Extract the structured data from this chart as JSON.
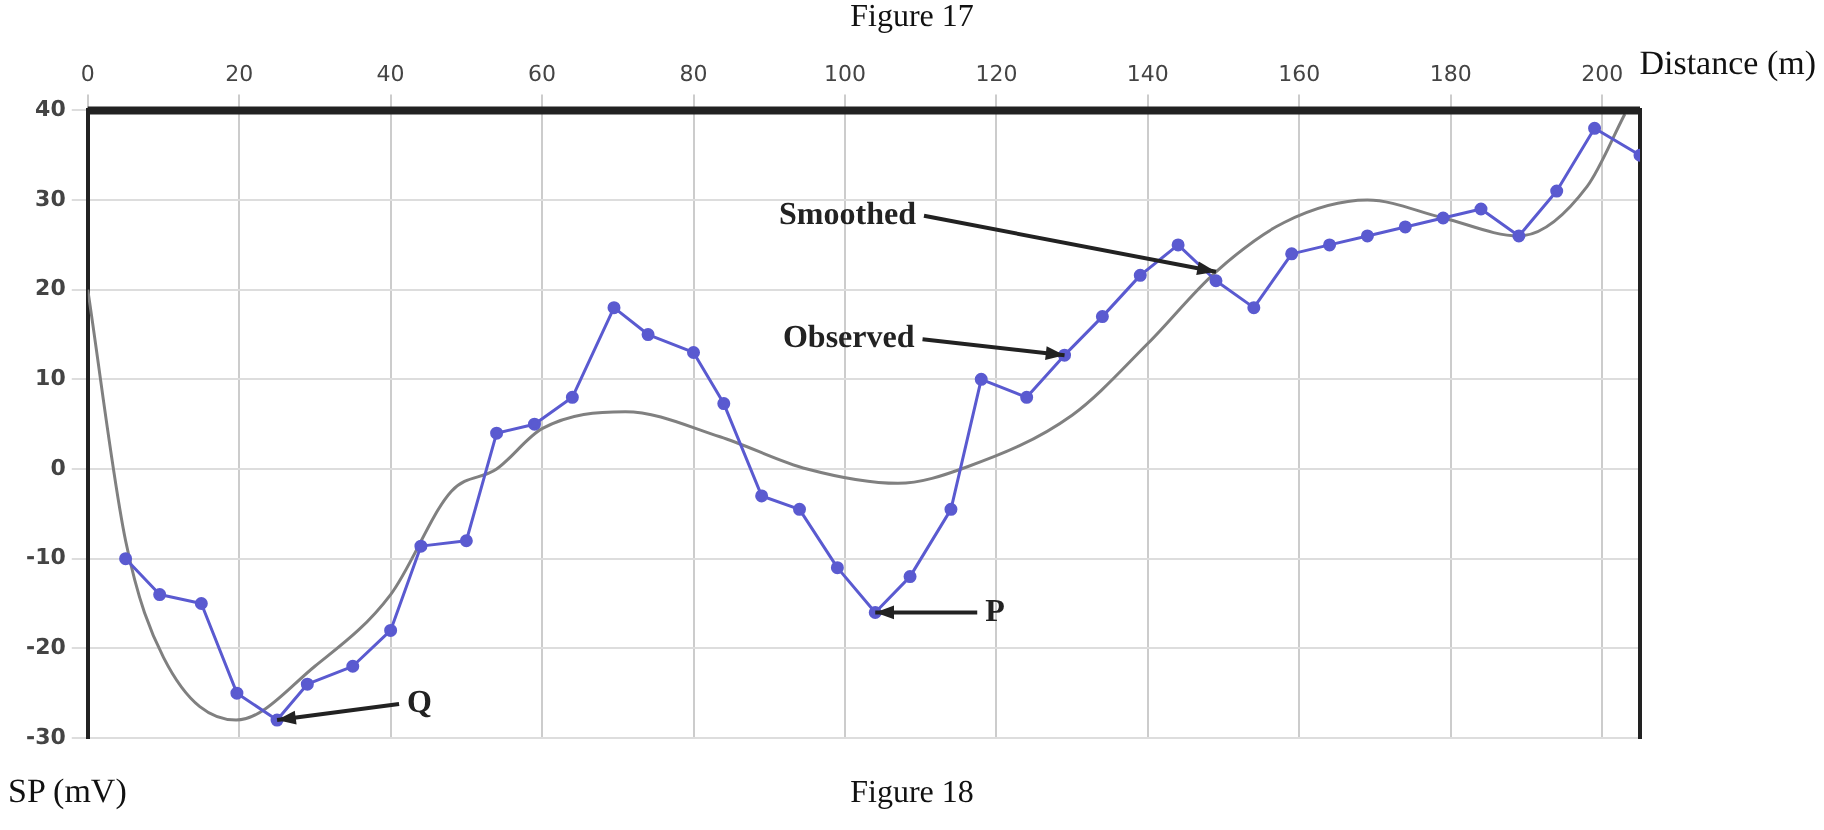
{
  "chart_data": {
    "type": "line",
    "title": "Figure 17",
    "xlabel": "Distance (m)",
    "ylabel": "SP (mV)",
    "xlim": [
      0,
      205
    ],
    "ylim": [
      -30,
      40
    ],
    "xticks": [
      0,
      20,
      40,
      60,
      80,
      100,
      120,
      140,
      160,
      180,
      200
    ],
    "yticks": [
      -30,
      -20,
      -10,
      0,
      10,
      20,
      30,
      40
    ],
    "grid": true,
    "legend": false,
    "line_style": "solid",
    "series": [
      {
        "marker": "circle",
        "color": "#5a5ad0",
        "x": [
          5,
          9.5,
          15,
          19.7,
          25,
          29,
          35,
          40,
          44,
          50,
          54,
          59,
          64,
          69.5,
          74,
          80,
          84,
          89,
          94,
          99,
          104,
          108.6,
          114,
          118,
          124,
          129,
          134,
          139,
          144,
          149,
          154,
          159,
          164,
          169,
          174,
          179,
          184,
          189,
          194,
          199,
          205
        ],
        "values": [
          -10,
          -14,
          -15,
          -25,
          -28,
          -24,
          -22,
          -18,
          -8.6,
          -8,
          4,
          5,
          8,
          18,
          15,
          13,
          7.3,
          -3,
          -4.5,
          -11,
          -16,
          -12,
          -4.5,
          10,
          8,
          12.7,
          17,
          21.6,
          25,
          21,
          18,
          24,
          25,
          26,
          27,
          28,
          29,
          26,
          31,
          38,
          35
        ]
      },
      {
        "marker": "none",
        "color": "#808080",
        "x": [
          0,
          5,
          10,
          19.6,
          30,
          40,
          48,
          54,
          60,
          71,
          83.5,
          95,
          107,
          116,
          130,
          140,
          149,
          158,
          169,
          179,
          189,
          198,
          203
        ],
        "values": [
          20,
          -8,
          -21,
          -28,
          -22,
          -14,
          -2.5,
          0,
          4.5,
          6.4,
          3.6,
          0,
          -1.6,
          0.2,
          6,
          14,
          22,
          27.5,
          30,
          28,
          26,
          31.5,
          39.6
        ]
      }
    ],
    "annotations": [
      {
        "text": "Smoothed",
        "x": 149,
        "y": 22
      },
      {
        "text": "Observed",
        "x": 129,
        "y": 12.7
      },
      {
        "text": "P",
        "x": 104,
        "y": -16
      },
      {
        "text": "Q",
        "x": 25,
        "y": -28
      },
      "Figure 18"
    ]
  }
}
